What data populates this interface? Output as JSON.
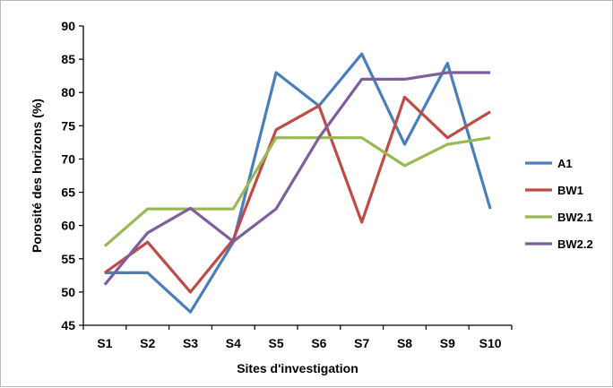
{
  "chart_data": {
    "type": "line",
    "xlabel": "Sites d'investigation",
    "ylabel": "Porosité des horizons (%)",
    "ylim": [
      45,
      90
    ],
    "yticks": [
      45,
      50,
      55,
      60,
      65,
      70,
      75,
      80,
      85,
      90
    ],
    "categories": [
      "S1",
      "S2",
      "S3",
      "S4",
      "S5",
      "S6",
      "S7",
      "S8",
      "S9",
      "S10"
    ],
    "grid": false,
    "legend": "right",
    "series": [
      {
        "name": "A1",
        "color": "#4a7ebb",
        "values": [
          52.9,
          52.9,
          47.0,
          57.5,
          83.0,
          78.0,
          85.8,
          72.2,
          84.4,
          62.5
        ]
      },
      {
        "name": "BW1",
        "color": "#be4b48",
        "values": [
          52.9,
          57.5,
          50.0,
          57.9,
          74.4,
          78.0,
          60.5,
          79.3,
          73.2,
          77.1
        ]
      },
      {
        "name": "BW2.1",
        "color": "#98b954",
        "values": [
          56.9,
          62.5,
          62.5,
          62.5,
          73.2,
          73.2,
          73.2,
          69.0,
          72.2,
          73.2
        ]
      },
      {
        "name": "BW2.2",
        "color": "#7d5fa0",
        "values": [
          51.1,
          58.9,
          62.6,
          57.6,
          62.5,
          73.2,
          82.0,
          82.0,
          83.0,
          83.0
        ]
      }
    ]
  }
}
